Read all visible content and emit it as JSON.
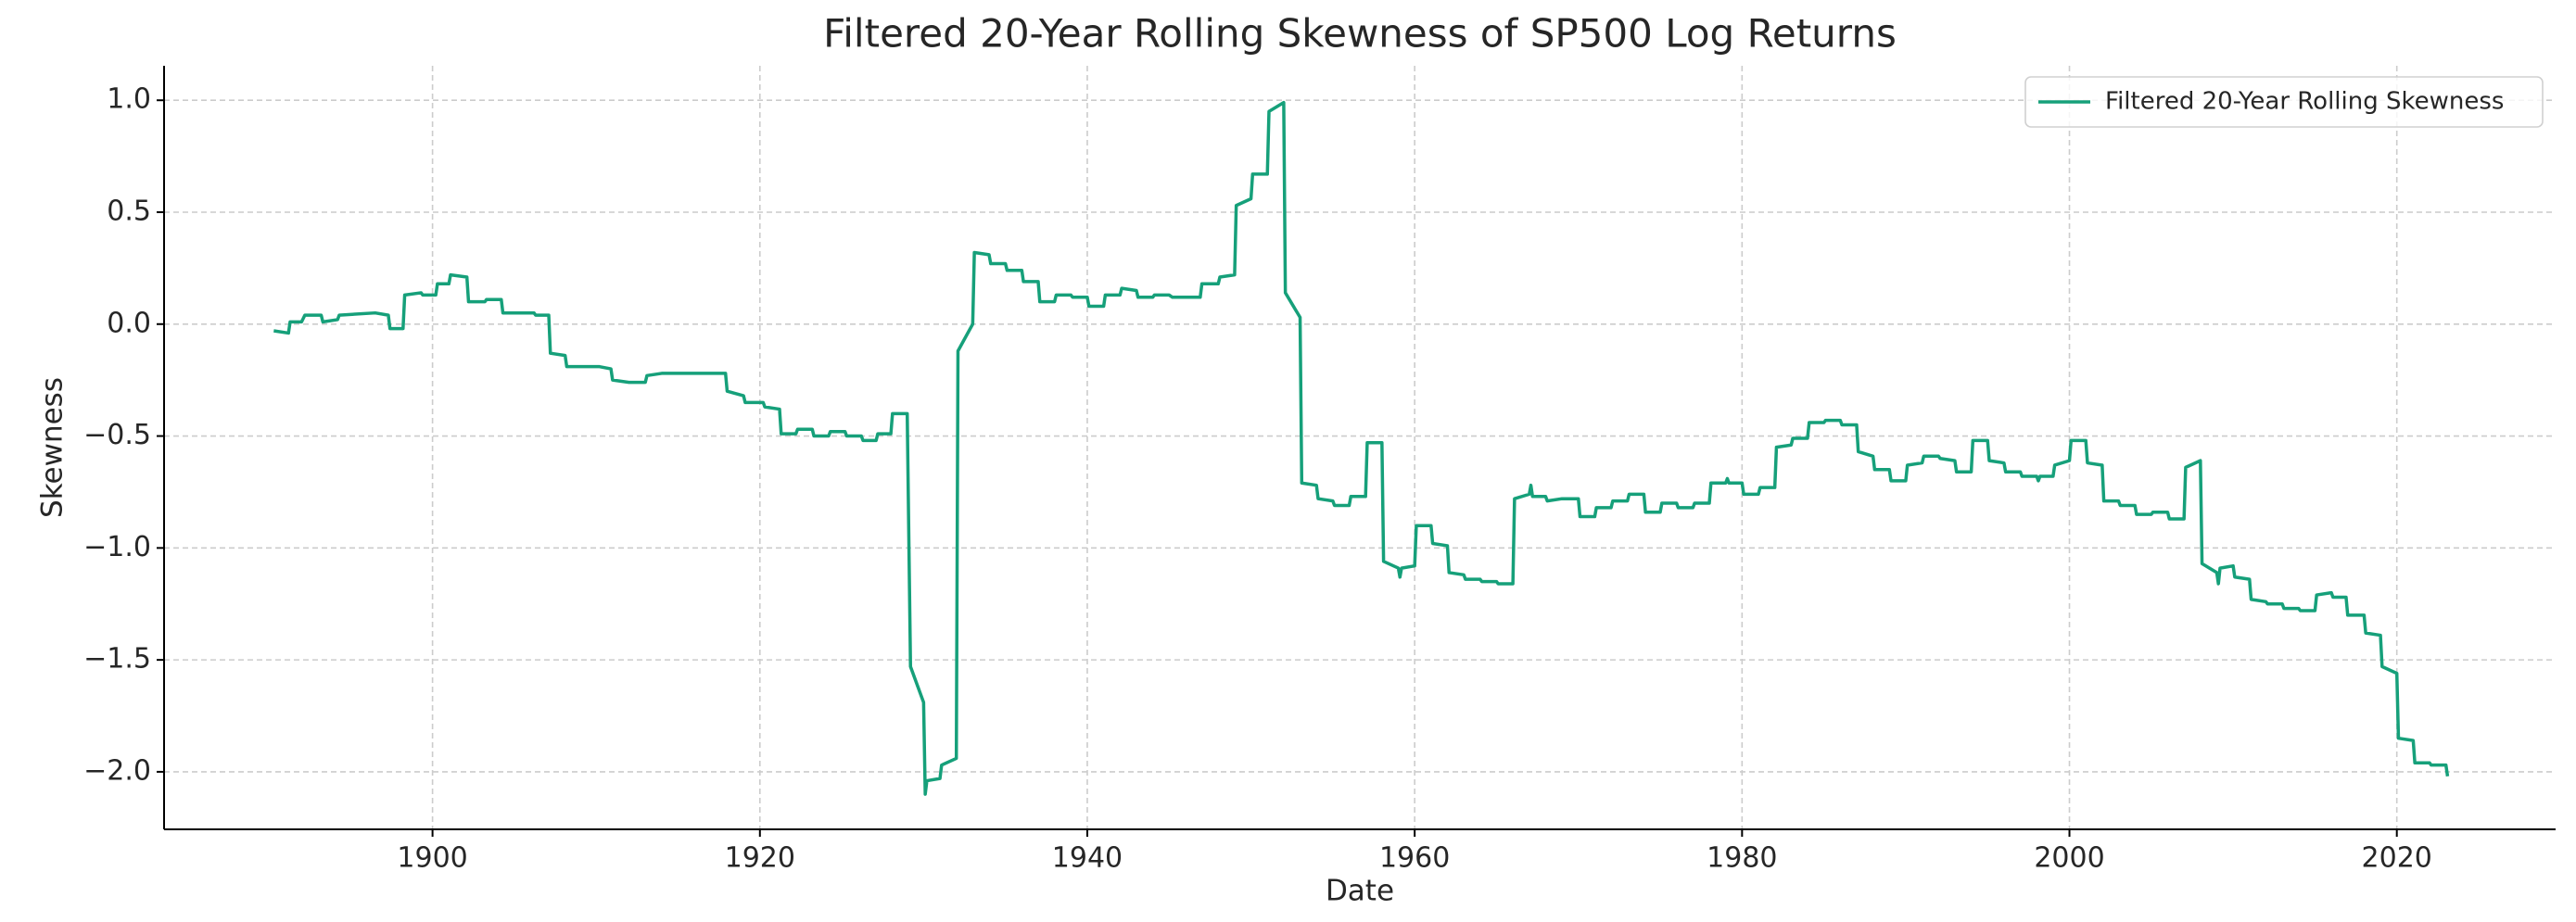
{
  "chart_data": {
    "type": "line",
    "title": "Filtered 20-Year Rolling Skewness of SP500 Log Returns",
    "xlabel": "Date",
    "ylabel": "Skewness",
    "legend_position": "upper right",
    "grid": true,
    "xlim": [
      1883.6,
      2029.7
    ],
    "ylim": [
      -2.257,
      1.154
    ],
    "xticks": [
      1900,
      1920,
      1940,
      1960,
      1980,
      2000,
      2020
    ],
    "yticks": [
      {
        "value": 1.0,
        "label": "1.0"
      },
      {
        "value": 0.5,
        "label": "0.5"
      },
      {
        "value": 0.0,
        "label": "0.0"
      },
      {
        "value": -0.5,
        "label": "−0.5"
      },
      {
        "value": -1.0,
        "label": "−1.0"
      },
      {
        "value": -1.5,
        "label": "−1.5"
      },
      {
        "value": -2.0,
        "label": "−2.0"
      }
    ],
    "x": [
      1890.3,
      1891.2,
      1891.3,
      1892.0,
      1892.2,
      1893.2,
      1893.3,
      1894.2,
      1894.3,
      1896.5,
      1897.3,
      1897.4,
      1898.2,
      1898.3,
      1899.3,
      1899.4,
      1900.2,
      1900.3,
      1901.0,
      1901.1,
      1902.1,
      1902.2,
      1903.2,
      1903.3,
      1904.2,
      1904.3,
      1906.2,
      1906.3,
      1907.1,
      1907.2,
      1908.1,
      1908.2,
      1910.2,
      1910.9,
      1911.0,
      1912.0,
      1913.0,
      1913.1,
      1914.0,
      1916.0,
      1917.9,
      1918.0,
      1919.0,
      1919.1,
      1920.2,
      1920.3,
      1921.2,
      1921.3,
      1922.2,
      1922.3,
      1923.2,
      1923.3,
      1924.2,
      1924.3,
      1925.2,
      1925.3,
      1926.2,
      1926.3,
      1927.1,
      1927.2,
      1928.0,
      1928.1,
      1929.0,
      1929.2,
      1930.0,
      1930.1,
      1930.2,
      1931.0,
      1931.1,
      1932.0,
      1932.1,
      1933.0,
      1933.1,
      1934.0,
      1934.1,
      1935.0,
      1935.1,
      1936.0,
      1936.1,
      1937.0,
      1937.1,
      1938.0,
      1938.1,
      1939.0,
      1939.1,
      1940.0,
      1940.1,
      1941.0,
      1941.1,
      1942.0,
      1942.1,
      1943.0,
      1943.1,
      1944.0,
      1944.1,
      1945.0,
      1945.2,
      1946.9,
      1947.0,
      1948.0,
      1948.1,
      1949.0,
      1949.1,
      1950.0,
      1950.1,
      1951.0,
      1951.1,
      1952.0,
      1952.1,
      1953.0,
      1953.1,
      1954.0,
      1954.1,
      1955.0,
      1955.1,
      1956.0,
      1956.1,
      1957.0,
      1957.1,
      1958.0,
      1958.1,
      1959.0,
      1959.1,
      1959.2,
      1960.0,
      1960.1,
      1961.0,
      1961.1,
      1962.0,
      1962.1,
      1963.0,
      1963.1,
      1964.0,
      1964.1,
      1965.0,
      1965.1,
      1966.0,
      1966.1,
      1967.0,
      1967.1,
      1967.2,
      1968.0,
      1968.1,
      1969.0,
      1970.0,
      1970.1,
      1971.0,
      1971.1,
      1972.0,
      1972.1,
      1973.0,
      1973.1,
      1974.0,
      1974.1,
      1975.0,
      1975.1,
      1976.0,
      1976.1,
      1977.0,
      1977.1,
      1978.0,
      1978.1,
      1979.0,
      1979.1,
      1979.2,
      1980.0,
      1980.1,
      1981.0,
      1981.1,
      1982.0,
      1982.1,
      1983.0,
      1983.1,
      1984.0,
      1984.1,
      1985.0,
      1985.1,
      1986.0,
      1986.1,
      1987.0,
      1987.1,
      1988.0,
      1988.1,
      1989.0,
      1989.1,
      1990.0,
      1990.1,
      1991.0,
      1991.1,
      1992.0,
      1992.1,
      1993.0,
      1993.1,
      1994.0,
      1994.1,
      1995.0,
      1995.1,
      1996.0,
      1996.1,
      1997.0,
      1997.1,
      1998.0,
      1998.1,
      1998.2,
      1999.0,
      1999.1,
      2000.0,
      2000.1,
      2001.0,
      2001.1,
      2002.0,
      2002.1,
      2003.0,
      2003.1,
      2004.0,
      2004.1,
      2005.0,
      2005.1,
      2006.0,
      2006.1,
      2007.0,
      2007.1,
      2008.0,
      2008.1,
      2009.0,
      2009.1,
      2009.2,
      2010.0,
      2010.1,
      2011.0,
      2011.1,
      2012.0,
      2012.1,
      2013.0,
      2013.1,
      2014.0,
      2014.1,
      2015.0,
      2015.1,
      2016.0,
      2016.1,
      2016.9,
      2017.0,
      2018.0,
      2018.1,
      2019.0,
      2019.1,
      2020.0,
      2020.1,
      2021.0,
      2021.1,
      2022.0,
      2022.1,
      2023.0,
      2023.1
    ],
    "series": [
      {
        "name": "Filtered 20-Year Rolling Skewness",
        "color": "#16a07a",
        "values": [
          -0.03,
          -0.04,
          0.01,
          0.01,
          0.04,
          0.04,
          0.01,
          0.02,
          0.04,
          0.05,
          0.04,
          -0.02,
          -0.02,
          0.13,
          0.14,
          0.13,
          0.13,
          0.18,
          0.18,
          0.22,
          0.21,
          0.1,
          0.1,
          0.11,
          0.11,
          0.05,
          0.05,
          0.04,
          0.04,
          -0.13,
          -0.14,
          -0.19,
          -0.19,
          -0.2,
          -0.25,
          -0.26,
          -0.26,
          -0.23,
          -0.22,
          -0.22,
          -0.22,
          -0.3,
          -0.32,
          -0.35,
          -0.35,
          -0.37,
          -0.38,
          -0.49,
          -0.49,
          -0.47,
          -0.47,
          -0.5,
          -0.5,
          -0.48,
          -0.48,
          -0.5,
          -0.5,
          -0.52,
          -0.52,
          -0.49,
          -0.49,
          -0.4,
          -0.4,
          -1.53,
          -1.69,
          -2.1,
          -2.04,
          -2.03,
          -1.97,
          -1.94,
          -0.12,
          0.0,
          0.32,
          0.31,
          0.27,
          0.27,
          0.24,
          0.24,
          0.19,
          0.19,
          0.1,
          0.1,
          0.13,
          0.13,
          0.12,
          0.12,
          0.08,
          0.08,
          0.13,
          0.13,
          0.16,
          0.15,
          0.12,
          0.12,
          0.13,
          0.13,
          0.12,
          0.12,
          0.18,
          0.18,
          0.21,
          0.22,
          0.53,
          0.56,
          0.67,
          0.67,
          0.95,
          0.99,
          0.14,
          0.03,
          -0.71,
          -0.72,
          -0.78,
          -0.79,
          -0.81,
          -0.81,
          -0.77,
          -0.77,
          -0.53,
          -0.53,
          -1.06,
          -1.09,
          -1.13,
          -1.09,
          -1.08,
          -0.9,
          -0.9,
          -0.98,
          -0.99,
          -1.11,
          -1.12,
          -1.14,
          -1.14,
          -1.15,
          -1.15,
          -1.16,
          -1.16,
          -0.78,
          -0.76,
          -0.72,
          -0.77,
          -0.77,
          -0.79,
          -0.78,
          -0.78,
          -0.86,
          -0.86,
          -0.82,
          -0.82,
          -0.79,
          -0.79,
          -0.76,
          -0.76,
          -0.84,
          -0.84,
          -0.8,
          -0.8,
          -0.82,
          -0.82,
          -0.8,
          -0.8,
          -0.71,
          -0.71,
          -0.69,
          -0.71,
          -0.71,
          -0.76,
          -0.76,
          -0.73,
          -0.73,
          -0.55,
          -0.54,
          -0.51,
          -0.51,
          -0.44,
          -0.44,
          -0.43,
          -0.43,
          -0.45,
          -0.45,
          -0.57,
          -0.59,
          -0.65,
          -0.65,
          -0.7,
          -0.7,
          -0.63,
          -0.62,
          -0.59,
          -0.59,
          -0.6,
          -0.61,
          -0.66,
          -0.66,
          -0.52,
          -0.52,
          -0.61,
          -0.62,
          -0.66,
          -0.66,
          -0.68,
          -0.68,
          -0.7,
          -0.68,
          -0.68,
          -0.63,
          -0.61,
          -0.52,
          -0.52,
          -0.62,
          -0.63,
          -0.79,
          -0.79,
          -0.81,
          -0.81,
          -0.85,
          -0.85,
          -0.84,
          -0.84,
          -0.87,
          -0.87,
          -0.64,
          -0.61,
          -1.07,
          -1.11,
          -1.16,
          -1.09,
          -1.08,
          -1.13,
          -1.14,
          -1.23,
          -1.24,
          -1.25,
          -1.25,
          -1.27,
          -1.27,
          -1.28,
          -1.28,
          -1.21,
          -1.2,
          -1.22,
          -1.22,
          -1.3,
          -1.3,
          -1.38,
          -1.39,
          -1.53,
          -1.56,
          -1.85,
          -1.86,
          -1.96,
          -1.96,
          -1.97,
          -1.97,
          -2.02
        ]
      }
    ]
  }
}
